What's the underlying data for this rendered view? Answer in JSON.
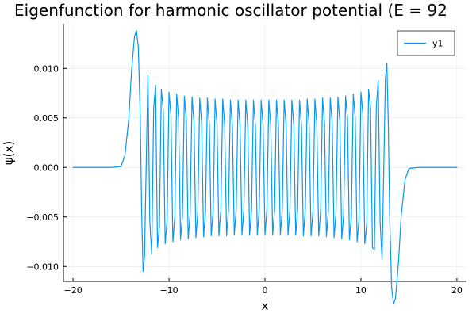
{
  "chart_data": {
    "type": "line",
    "title": "Eigenfunction for harmonic oscillator potential (E = 92",
    "xlabel": "x",
    "ylabel": "ψ(x)",
    "xlim": [
      -21,
      21
    ],
    "ylim": [
      -0.0115,
      0.0145
    ],
    "xticks": [
      -20,
      -10,
      0,
      10,
      20
    ],
    "xtick_labels": [
      "−20",
      "−10",
      "0",
      "10",
      "20"
    ],
    "yticks": [
      -0.01,
      -0.005,
      0.0,
      0.005,
      0.01
    ],
    "ytick_labels": [
      "−0.010",
      "−0.005",
      "0.000",
      "0.005",
      "0.010"
    ],
    "grid": true,
    "legend_position": "top-right",
    "series": [
      {
        "name": "y1",
        "color": "#009AFA",
        "x": [
          -20.0,
          -18.0,
          -16.0,
          -15.0,
          -14.6,
          -14.2,
          -13.9,
          -13.6,
          -13.4,
          -13.2,
          -13.0,
          -12.85,
          -12.7,
          -12.55,
          -12.4,
          -12.2,
          -12.0,
          -11.8,
          -11.6,
          -11.4,
          -11.2,
          -11.0,
          -10.8,
          -10.6,
          -10.4,
          -10.2,
          -10.0,
          -9.8,
          -9.6,
          -9.4,
          -9.2,
          -9.0,
          -8.8,
          -8.6,
          -8.4,
          -8.2,
          -8.0,
          -7.8,
          -7.6,
          -7.4,
          -7.2,
          -7.0,
          -6.8,
          -6.6,
          -6.4,
          -6.2,
          -6.0,
          -5.8,
          -5.6,
          -5.4,
          -5.2,
          -5.0,
          -4.8,
          -4.6,
          -4.4,
          -4.2,
          -4.0,
          -3.8,
          -3.6,
          -3.4,
          -3.2,
          -3.0,
          -2.8,
          -2.6,
          -2.4,
          -2.2,
          -2.0,
          -1.8,
          -1.6,
          -1.4,
          -1.2,
          -1.0,
          -0.8,
          -0.6,
          -0.4,
          -0.2,
          0.0,
          0.2,
          0.4,
          0.6,
          0.8,
          1.0,
          1.2,
          1.4,
          1.6,
          1.8,
          2.0,
          2.2,
          2.4,
          2.6,
          2.8,
          3.0,
          3.2,
          3.4,
          3.6,
          3.8,
          4.0,
          4.2,
          4.4,
          4.6,
          4.8,
          5.0,
          5.2,
          5.4,
          5.6,
          5.8,
          6.0,
          6.2,
          6.4,
          6.6,
          6.8,
          7.0,
          7.2,
          7.4,
          7.6,
          7.8,
          8.0,
          8.2,
          8.4,
          8.6,
          8.8,
          9.0,
          9.2,
          9.4,
          9.6,
          9.8,
          10.0,
          10.2,
          10.4,
          10.6,
          10.8,
          11.0,
          11.2,
          11.4,
          11.6,
          11.8,
          12.0,
          12.2,
          12.4,
          12.55,
          12.7,
          12.85,
          13.0,
          13.2,
          13.4,
          13.6,
          13.9,
          14.2,
          14.6,
          15.0,
          16.0,
          18.0,
          20.0
        ],
        "y": [
          0.0,
          0.0,
          0.0,
          0.0001,
          0.0012,
          0.0048,
          0.0098,
          0.0132,
          0.0138,
          0.0122,
          0.0052,
          -0.0045,
          -0.0105,
          -0.009,
          -0.001,
          0.0093,
          -0.0055,
          -0.0088,
          0.006,
          0.0083,
          -0.0081,
          -0.006,
          0.0079,
          0.0058,
          -0.0077,
          -0.0054,
          0.0076,
          0.0053,
          -0.0075,
          -0.0051,
          0.0074,
          0.005,
          -0.0073,
          -0.0049,
          0.0072,
          0.0048,
          -0.0072,
          -0.0047,
          0.0071,
          0.0046,
          -0.0071,
          -0.0046,
          0.007,
          0.0045,
          -0.007,
          -0.0045,
          0.007,
          0.0044,
          -0.0069,
          -0.0044,
          0.0069,
          0.0044,
          -0.0069,
          -0.0043,
          0.0069,
          0.0043,
          -0.0069,
          -0.0043,
          0.0068,
          0.0043,
          -0.0068,
          -0.0043,
          0.0068,
          0.0043,
          -0.0068,
          -0.0043,
          0.0068,
          0.0043,
          -0.0068,
          -0.0043,
          0.0068,
          0.0043,
          -0.0068,
          -0.0043,
          0.0068,
          0.0043,
          -0.0068,
          -0.0043,
          0.0068,
          0.0043,
          -0.0068,
          -0.0043,
          0.0068,
          0.0043,
          -0.0068,
          -0.0043,
          0.0068,
          0.0043,
          -0.0068,
          -0.0043,
          0.0068,
          0.0043,
          -0.0068,
          -0.0043,
          0.0068,
          0.0043,
          -0.0069,
          -0.0043,
          0.0069,
          0.0043,
          -0.0069,
          -0.0044,
          0.0069,
          0.0044,
          -0.0069,
          -0.0044,
          0.007,
          0.0045,
          -0.007,
          -0.0045,
          0.007,
          0.0046,
          -0.0071,
          -0.0046,
          0.0071,
          0.0047,
          -0.0072,
          -0.0048,
          0.0072,
          0.0049,
          -0.0073,
          -0.005,
          0.0074,
          0.0051,
          -0.0075,
          -0.0053,
          0.0076,
          0.0054,
          -0.0077,
          -0.0058,
          0.0079,
          0.006,
          -0.0081,
          -0.0083,
          0.006,
          0.0088,
          -0.0055,
          -0.0093,
          0.001,
          0.009,
          0.0105,
          0.0045,
          -0.0052,
          -0.0122,
          -0.0138,
          -0.0132,
          -0.0098,
          -0.0048,
          -0.0012,
          -0.0001,
          0.0,
          0.0,
          0.0
        ]
      }
    ]
  }
}
